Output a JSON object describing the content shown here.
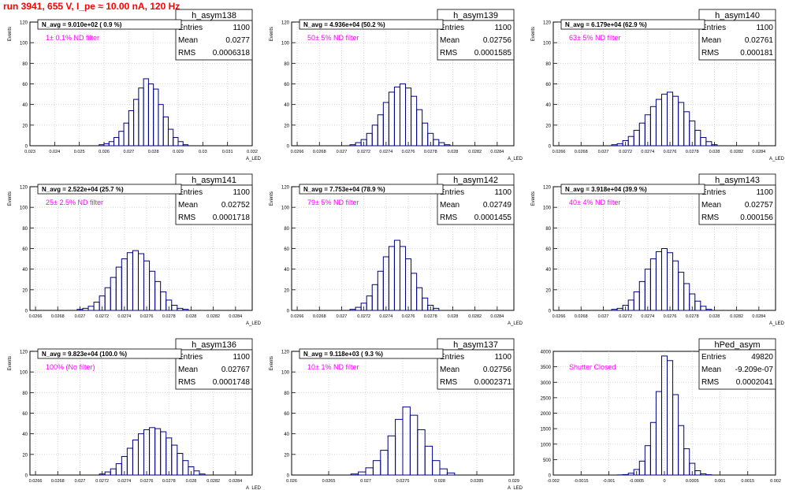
{
  "title": "run 3941,   655 V, I_pe ≈ 10.00 nA, 120 Hz",
  "colors": {
    "title": "#ff0000",
    "histogram": "#000080",
    "annotation": "#ff00ff",
    "axes": "#000000"
  },
  "chart_data": [
    {
      "type": "bar",
      "name": "h_asym138",
      "ylabel": "Events",
      "xlabel": "A_LED",
      "ylim": [
        0,
        120
      ],
      "xlim": [
        0.023,
        0.032
      ],
      "yticks": [
        "0",
        "20",
        "40",
        "60",
        "80",
        "100",
        "120"
      ],
      "xticks": [
        "0.023",
        "0.024",
        "0.025",
        "0.026",
        "0.027",
        "0.028",
        "0.029",
        "0.03",
        "0.031",
        "0.032"
      ],
      "navg": "N_avg = 9.010e+02 ( 0.9 %)",
      "filter": "1± 0.1% ND filter",
      "stats": [
        [
          "Entries",
          "1100"
        ],
        [
          "Mean",
          "0.0277"
        ],
        [
          "RMS",
          "0.0006318"
        ]
      ],
      "x": [
        0.0259,
        0.0261,
        0.0263,
        0.0265,
        0.0267,
        0.0269,
        0.0271,
        0.0273,
        0.0275,
        0.0277,
        0.0279,
        0.0281,
        0.0283,
        0.0285,
        0.0287,
        0.0289,
        0.0291,
        0.0293
      ],
      "values": [
        1,
        2,
        4,
        8,
        14,
        22,
        34,
        45,
        56,
        65,
        60,
        55,
        40,
        28,
        16,
        8,
        4,
        1
      ]
    },
    {
      "type": "bar",
      "name": "h_asym139",
      "ylabel": "Events",
      "xlabel": "A_LED",
      "ylim": [
        0,
        120
      ],
      "xlim": [
        0.02655,
        0.02855
      ],
      "yticks": [
        "0",
        "20",
        "40",
        "60",
        "80",
        "100",
        "120"
      ],
      "xticks": [
        "0.0266",
        "0.0268",
        "0.027",
        "0.0272",
        "0.0274",
        "0.0276",
        "0.0278",
        "0.028",
        "0.0282",
        "0.0284"
      ],
      "navg": "N_avg = 4.936e+04 (50.2 %)",
      "filter": "50± 5% ND filter",
      "stats": [
        [
          "Entries",
          "1100"
        ],
        [
          "Mean",
          "0.02756"
        ],
        [
          "RMS",
          "0.0001585"
        ]
      ],
      "x": [
        0.0271,
        0.02715,
        0.0272,
        0.02725,
        0.0273,
        0.02735,
        0.0274,
        0.02745,
        0.0275,
        0.02755,
        0.0276,
        0.02765,
        0.0277,
        0.02775,
        0.0278,
        0.02785,
        0.0279,
        0.02795
      ],
      "values": [
        1,
        3,
        6,
        12,
        20,
        30,
        42,
        52,
        57,
        60,
        56,
        48,
        35,
        22,
        12,
        6,
        3,
        1
      ]
    },
    {
      "type": "bar",
      "name": "h_asym140",
      "ylabel": "Events",
      "xlabel": "A_LED",
      "ylim": [
        0,
        120
      ],
      "xlim": [
        0.02655,
        0.02855
      ],
      "yticks": [
        "0",
        "20",
        "40",
        "60",
        "80",
        "100",
        "120"
      ],
      "xticks": [
        "0.0266",
        "0.0268",
        "0.027",
        "0.0272",
        "0.0274",
        "0.0276",
        "0.0278",
        "0.028",
        "0.0282",
        "0.0284"
      ],
      "navg": "N_avg = 6.179e+04 (62.9 %)",
      "filter": "63± 5% ND filter",
      "stats": [
        [
          "Entries",
          "1100"
        ],
        [
          "Mean",
          "0.02761"
        ],
        [
          "RMS",
          "0.000181"
        ]
      ],
      "x": [
        0.0271,
        0.02715,
        0.0272,
        0.02725,
        0.0273,
        0.02735,
        0.0274,
        0.02745,
        0.0275,
        0.02755,
        0.0276,
        0.02765,
        0.0277,
        0.02775,
        0.0278,
        0.02785,
        0.0279,
        0.02795,
        0.028
      ],
      "values": [
        1,
        2,
        5,
        9,
        15,
        22,
        30,
        38,
        45,
        50,
        52,
        48,
        42,
        33,
        24,
        15,
        8,
        4,
        1
      ]
    },
    {
      "type": "bar",
      "name": "h_asym141",
      "ylabel": "Events",
      "xlabel": "A_LED",
      "ylim": [
        0,
        120
      ],
      "xlim": [
        0.02655,
        0.02855
      ],
      "yticks": [
        "0",
        "20",
        "40",
        "60",
        "80",
        "100",
        "120"
      ],
      "xticks": [
        "0.0266",
        "0.0268",
        "0.027",
        "0.0272",
        "0.0274",
        "0.0276",
        "0.0278",
        "0.028",
        "0.0282",
        "0.0284"
      ],
      "navg": "N_avg = 2.522e+04 (25.7 %)",
      "filter": "25± 2.5% ND filter",
      "stats": [
        [
          "Entries",
          "1100"
        ],
        [
          "Mean",
          "0.02752"
        ],
        [
          "RMS",
          "0.0001718"
        ]
      ],
      "x": [
        0.027,
        0.02705,
        0.0271,
        0.02715,
        0.0272,
        0.02725,
        0.0273,
        0.02735,
        0.0274,
        0.02745,
        0.0275,
        0.02755,
        0.0276,
        0.02765,
        0.0277,
        0.02775,
        0.0278,
        0.02785,
        0.0279,
        0.02795
      ],
      "values": [
        1,
        2,
        4,
        8,
        14,
        22,
        32,
        42,
        50,
        56,
        58,
        55,
        48,
        38,
        28,
        18,
        10,
        5,
        2,
        1
      ]
    },
    {
      "type": "bar",
      "name": "h_asym142",
      "ylabel": "Events",
      "xlabel": "A_LED",
      "ylim": [
        0,
        120
      ],
      "xlim": [
        0.02655,
        0.02855
      ],
      "yticks": [
        "0",
        "20",
        "40",
        "60",
        "80",
        "100",
        "120"
      ],
      "xticks": [
        "0.0266",
        "0.0268",
        "0.027",
        "0.0272",
        "0.0274",
        "0.0276",
        "0.0278",
        "0.028",
        "0.0282",
        "0.0284"
      ],
      "navg": "N_avg = 7.753e+04 (78.9 %)",
      "filter": "79± 5% ND filter",
      "stats": [
        [
          "Entries",
          "1100"
        ],
        [
          "Mean",
          "0.02749"
        ],
        [
          "RMS",
          "0.0001455"
        ]
      ],
      "x": [
        0.0271,
        0.02715,
        0.0272,
        0.02725,
        0.0273,
        0.02735,
        0.0274,
        0.02745,
        0.0275,
        0.02755,
        0.0276,
        0.02765,
        0.0277,
        0.02775,
        0.0278,
        0.02785
      ],
      "values": [
        1,
        3,
        7,
        14,
        25,
        38,
        52,
        62,
        68,
        62,
        50,
        36,
        22,
        12,
        5,
        2
      ]
    },
    {
      "type": "bar",
      "name": "h_asym143",
      "ylabel": "Events",
      "xlabel": "A_LED",
      "ylim": [
        0,
        120
      ],
      "xlim": [
        0.02655,
        0.02855
      ],
      "yticks": [
        "0",
        "20",
        "40",
        "60",
        "80",
        "100",
        "120"
      ],
      "xticks": [
        "0.0266",
        "0.0268",
        "0.027",
        "0.0272",
        "0.0274",
        "0.0276",
        "0.0278",
        "0.028",
        "0.0282",
        "0.0284"
      ],
      "navg": "N_avg = 3.918e+04 (39.9 %)",
      "filter": "40± 4% ND filter",
      "stats": [
        [
          "Entries",
          "1100"
        ],
        [
          "Mean",
          "0.02757"
        ],
        [
          "RMS",
          "0.000156"
        ]
      ],
      "x": [
        0.0271,
        0.02715,
        0.0272,
        0.02725,
        0.0273,
        0.02735,
        0.0274,
        0.02745,
        0.0275,
        0.02755,
        0.0276,
        0.02765,
        0.0277,
        0.02775,
        0.0278,
        0.02785,
        0.0279,
        0.02795
      ],
      "values": [
        1,
        2,
        5,
        10,
        18,
        28,
        40,
        50,
        57,
        60,
        56,
        48,
        37,
        26,
        16,
        9,
        4,
        1
      ]
    },
    {
      "type": "bar",
      "name": "h_asym136",
      "ylabel": "Events",
      "xlabel": "A_LED",
      "ylim": [
        0,
        120
      ],
      "xlim": [
        0.02655,
        0.02855
      ],
      "yticks": [
        "0",
        "20",
        "40",
        "60",
        "80",
        "100",
        "120"
      ],
      "xticks": [
        "0.0266",
        "0.0268",
        "0.027",
        "0.0272",
        "0.0274",
        "0.0276",
        "0.0278",
        "0.028",
        "0.0282",
        "0.0284"
      ],
      "navg": "N_avg = 9.823e+04 (100.0 %)",
      "filter": "100% (No filter)",
      "stats": [
        [
          "Entries",
          "1100"
        ],
        [
          "Mean",
          "0.02767"
        ],
        [
          "RMS",
          "0.0001748"
        ]
      ],
      "x": [
        0.0272,
        0.02725,
        0.0273,
        0.02735,
        0.0274,
        0.02745,
        0.0275,
        0.02755,
        0.0276,
        0.02765,
        0.0277,
        0.02775,
        0.0278,
        0.02785,
        0.0279,
        0.02795,
        0.028,
        0.02805,
        0.0281
      ],
      "values": [
        1,
        3,
        6,
        11,
        18,
        26,
        34,
        40,
        44,
        46,
        45,
        42,
        36,
        29,
        21,
        14,
        8,
        4,
        1
      ]
    },
    {
      "type": "bar",
      "name": "h_asym137",
      "ylabel": "Events",
      "xlabel": "A_LED",
      "ylim": [
        0,
        120
      ],
      "xlim": [
        0.026,
        0.029
      ],
      "yticks": [
        "0",
        "20",
        "40",
        "60",
        "80",
        "100",
        "120"
      ],
      "xticks": [
        "0.026",
        "0.0265",
        "0.027",
        "0.0275",
        "0.028",
        "0.0285",
        "0.029"
      ],
      "navg": "N_avg = 9.118e+03 ( 9.3 %)",
      "filter": "10± 1% ND filter",
      "stats": [
        [
          "Entries",
          "1100"
        ],
        [
          "Mean",
          "0.02756"
        ],
        [
          "RMS",
          "0.0002371"
        ]
      ],
      "x": [
        0.02685,
        0.02695,
        0.02705,
        0.02715,
        0.02725,
        0.02735,
        0.02745,
        0.02755,
        0.02765,
        0.02775,
        0.02785,
        0.02795,
        0.02805,
        0.02815
      ],
      "values": [
        1,
        3,
        7,
        14,
        24,
        38,
        54,
        66,
        58,
        44,
        28,
        14,
        6,
        2
      ]
    },
    {
      "type": "bar",
      "name": "hPed_asym",
      "ylabel": "",
      "xlabel": "",
      "ylim": [
        0,
        4000
      ],
      "xlim": [
        -0.002,
        0.002
      ],
      "yticks": [
        "0",
        "500",
        "1000",
        "1500",
        "2000",
        "2500",
        "3000",
        "3500",
        "4000"
      ],
      "xticks": [
        "-0.002",
        "-0.0015",
        "-0.001",
        "-0.0005",
        "0",
        "0.0005",
        "0.001",
        "0.0015",
        "0.002"
      ],
      "navg": "",
      "filter": "Shutter Closed",
      "stats": [
        [
          "Entries",
          "49820"
        ],
        [
          "Mean",
          "-9.209e-07"
        ],
        [
          "RMS",
          "0.0002041"
        ]
      ],
      "x": [
        -0.0008,
        -0.0007,
        -0.0006,
        -0.0005,
        -0.0004,
        -0.0003,
        -0.0002,
        -0.0001,
        0.0,
        0.0001,
        0.0002,
        0.0003,
        0.0004,
        0.0005,
        0.0006,
        0.0007,
        0.0008
      ],
      "values": [
        5,
        15,
        60,
        180,
        450,
        950,
        1700,
        2700,
        3850,
        3700,
        2600,
        1600,
        850,
        380,
        140,
        40,
        10
      ]
    }
  ]
}
